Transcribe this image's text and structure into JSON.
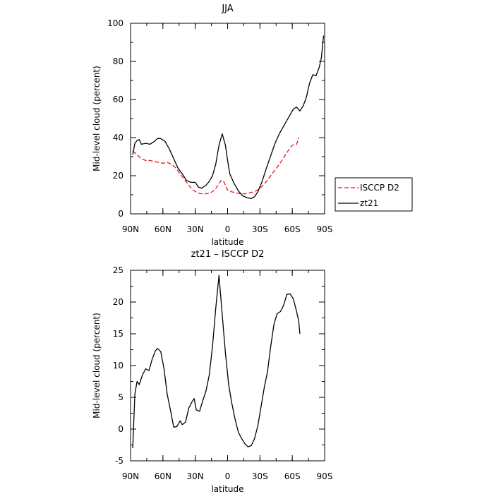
{
  "chart_data": [
    {
      "type": "line",
      "title": "JJA",
      "xlabel": "latitude",
      "ylabel": "Mid-level cloud (percent)",
      "xlim": [
        90,
        -90
      ],
      "ylim": [
        0,
        100
      ],
      "xticks": [
        {
          "value": 90,
          "label": "90N"
        },
        {
          "value": 60,
          "label": "60N"
        },
        {
          "value": 30,
          "label": "30N"
        },
        {
          "value": 0,
          "label": "0"
        },
        {
          "value": -30,
          "label": "30S"
        },
        {
          "value": -60,
          "label": "60S"
        },
        {
          "value": -90,
          "label": "90S"
        }
      ],
      "yticks": [
        0,
        20,
        40,
        60,
        80,
        100
      ],
      "legend": {
        "placement": "outside-right"
      },
      "series": [
        {
          "name": "ISCCP D2",
          "color": "#e8141b",
          "dash": "dashed",
          "points": [
            [
              88,
              33
            ],
            [
              84,
              31
            ],
            [
              80,
              29
            ],
            [
              76,
              28
            ],
            [
              72,
              28
            ],
            [
              68,
              27.5
            ],
            [
              64,
              27
            ],
            [
              60,
              26.5
            ],
            [
              56,
              27
            ],
            [
              52,
              26
            ],
            [
              48,
              24
            ],
            [
              44,
              21
            ],
            [
              40,
              18
            ],
            [
              36,
              15
            ],
            [
              32,
              12.5
            ],
            [
              28,
              11
            ],
            [
              24,
              10.5
            ],
            [
              20,
              10.5
            ],
            [
              16,
              11
            ],
            [
              12,
              12.5
            ],
            [
              9,
              15
            ],
            [
              6,
              17.5
            ],
            [
              4,
              17.5
            ],
            [
              2,
              15
            ],
            [
              0,
              12.5
            ],
            [
              -4,
              11.5
            ],
            [
              -8,
              11
            ],
            [
              -12,
              10.5
            ],
            [
              -16,
              10.5
            ],
            [
              -20,
              11
            ],
            [
              -24,
              11.5
            ],
            [
              -28,
              12.5
            ],
            [
              -32,
              14.5
            ],
            [
              -36,
              17
            ],
            [
              -40,
              20
            ],
            [
              -44,
              23
            ],
            [
              -48,
              26
            ],
            [
              -52,
              29.5
            ],
            [
              -56,
              33
            ],
            [
              -60,
              36
            ],
            [
              -64,
              36.5
            ],
            [
              -66,
              40
            ]
          ]
        },
        {
          "name": "zt21",
          "color": "#000000",
          "dash": "solid",
          "points": [
            [
              88,
              31
            ],
            [
              86,
              37
            ],
            [
              84,
              38.5
            ],
            [
              82,
              39
            ],
            [
              80,
              36.5
            ],
            [
              76,
              37
            ],
            [
              72,
              36.5
            ],
            [
              68,
              38
            ],
            [
              65,
              39.5
            ],
            [
              62,
              39.5
            ],
            [
              58,
              38
            ],
            [
              54,
              34
            ],
            [
              50,
              29
            ],
            [
              46,
              24
            ],
            [
              42,
              21
            ],
            [
              38,
              17.5
            ],
            [
              34,
              16.5
            ],
            [
              30,
              16.5
            ],
            [
              27,
              14
            ],
            [
              24,
              13.5
            ],
            [
              20,
              15
            ],
            [
              17,
              17
            ],
            [
              14,
              20
            ],
            [
              11,
              26
            ],
            [
              8,
              36
            ],
            [
              5,
              42
            ],
            [
              2,
              36
            ],
            [
              0,
              28
            ],
            [
              -2,
              21
            ],
            [
              -6,
              16
            ],
            [
              -10,
              12
            ],
            [
              -14,
              9.5
            ],
            [
              -18,
              8.5
            ],
            [
              -22,
              8
            ],
            [
              -25,
              9
            ],
            [
              -28,
              11.5
            ],
            [
              -32,
              17
            ],
            [
              -36,
              24
            ],
            [
              -40,
              30.5
            ],
            [
              -44,
              37
            ],
            [
              -48,
              42
            ],
            [
              -52,
              46
            ],
            [
              -55,
              49
            ],
            [
              -58,
              52
            ],
            [
              -61,
              55
            ],
            [
              -64,
              56
            ],
            [
              -67,
              54
            ],
            [
              -70,
              56.5
            ],
            [
              -73,
              61
            ],
            [
              -76,
              68.5
            ],
            [
              -79,
              73
            ],
            [
              -82,
              72.5
            ],
            [
              -85,
              77
            ],
            [
              -87,
              82
            ],
            [
              -89,
              93.5
            ]
          ]
        }
      ]
    },
    {
      "type": "line",
      "title": "zt21 – ISCCP D2",
      "xlabel": "latitude",
      "ylabel": "Mid-level cloud (percent)",
      "xlim": [
        90,
        -90
      ],
      "ylim": [
        -5,
        25
      ],
      "xticks": [
        {
          "value": 90,
          "label": "90N"
        },
        {
          "value": 60,
          "label": "60N"
        },
        {
          "value": 30,
          "label": "30N"
        },
        {
          "value": 0,
          "label": "0"
        },
        {
          "value": -30,
          "label": "30S"
        },
        {
          "value": -60,
          "label": "60S"
        },
        {
          "value": -90,
          "label": "90S"
        }
      ],
      "yticks": [
        -5,
        0,
        5,
        10,
        15,
        20,
        25
      ],
      "series": [
        {
          "color": "#000000",
          "dash": "solid",
          "points": [
            [
              88,
              -3
            ],
            [
              86,
              5.5
            ],
            [
              84,
              7.5
            ],
            [
              82,
              7
            ],
            [
              79,
              8.5
            ],
            [
              76,
              9.5
            ],
            [
              73,
              9.2
            ],
            [
              70,
              11
            ],
            [
              67,
              12.3
            ],
            [
              65,
              12.7
            ],
            [
              62,
              12.2
            ],
            [
              59,
              9.5
            ],
            [
              56,
              5.5
            ],
            [
              53,
              3
            ],
            [
              50,
              0.3
            ],
            [
              47,
              0.4
            ],
            [
              44,
              1.3
            ],
            [
              42,
              0.7
            ],
            [
              39,
              1.1
            ],
            [
              36,
              3.3
            ],
            [
              33,
              4.3
            ],
            [
              31,
              4.8
            ],
            [
              29,
              3
            ],
            [
              26,
              2.8
            ],
            [
              23,
              4.5
            ],
            [
              20,
              6
            ],
            [
              17,
              8.5
            ],
            [
              14,
              13
            ],
            [
              11,
              19
            ],
            [
              8,
              24.2
            ],
            [
              5,
              18
            ],
            [
              2,
              12
            ],
            [
              -1,
              7
            ],
            [
              -4,
              4
            ],
            [
              -7,
              1.5
            ],
            [
              -10,
              -0.5
            ],
            [
              -13,
              -1.5
            ],
            [
              -16,
              -2.3
            ],
            [
              -19,
              -2.8
            ],
            [
              -22,
              -2.6
            ],
            [
              -25,
              -1.5
            ],
            [
              -28,
              0.5
            ],
            [
              -31,
              3.5
            ],
            [
              -34,
              6.5
            ],
            [
              -37,
              9
            ],
            [
              -40,
              13
            ],
            [
              -43,
              16.5
            ],
            [
              -46,
              18.2
            ],
            [
              -49,
              18.5
            ],
            [
              -52,
              19.5
            ],
            [
              -55,
              21.2
            ],
            [
              -58,
              21.3
            ],
            [
              -61,
              20.5
            ],
            [
              -64,
              18.5
            ],
            [
              -66,
              17
            ],
            [
              -67,
              15
            ]
          ]
        }
      ]
    }
  ]
}
